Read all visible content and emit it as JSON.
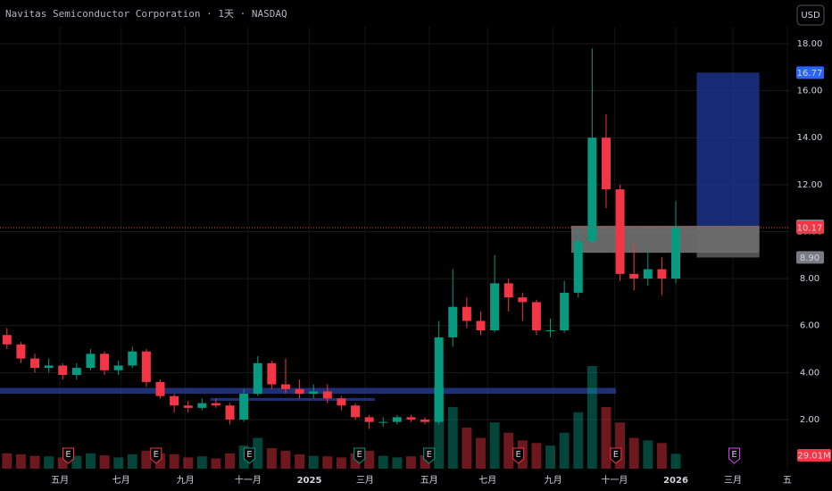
{
  "chart_data": {
    "type": "candlestick",
    "title": "Navitas Semiconductor Corporation · 1天 · NASDAQ",
    "currency_button": "USD",
    "xlim": [
      -0.5,
      56.2
    ],
    "xticks": [
      {
        "value": 3.8,
        "label": "五月"
      },
      {
        "value": 8.2,
        "label": "七月"
      },
      {
        "value": 12.8,
        "label": "九月"
      },
      {
        "value": 17.3,
        "label": "十一月"
      },
      {
        "value": 21.7,
        "label": "2025"
      },
      {
        "value": 25.7,
        "label": "三月"
      },
      {
        "value": 30.3,
        "label": "五月"
      },
      {
        "value": 34.5,
        "label": "七月"
      },
      {
        "value": 39.2,
        "label": "九月"
      },
      {
        "value": 43.6,
        "label": "十一月"
      },
      {
        "value": 48.0,
        "label": "2026"
      },
      {
        "value": 52.1,
        "label": "三月"
      },
      {
        "value": 56.0,
        "label": "五"
      }
    ],
    "ylim": [
      -0.09,
      18.72
    ],
    "yticks": [
      {
        "value": 2,
        "label": "2.00"
      },
      {
        "value": 4,
        "label": "4.00"
      },
      {
        "value": 6,
        "label": "6.00"
      },
      {
        "value": 8,
        "label": "8.00"
      },
      {
        "value": 10,
        "label": "10.00"
      },
      {
        "value": 12,
        "label": "12.00"
      },
      {
        "value": 14,
        "label": "14.00"
      },
      {
        "value": 16,
        "label": "16.00"
      },
      {
        "value": 18,
        "label": "18.00"
      }
    ],
    "grid": true,
    "up_color": "#089981",
    "down_color": "#f23645",
    "open": [
      5.6,
      5.2,
      4.6,
      4.2,
      4.3,
      3.9,
      4.2,
      4.8,
      4.1,
      4.3,
      4.9,
      3.6,
      3.0,
      2.6,
      2.5,
      2.7,
      2.6,
      2.0,
      3.1,
      4.4,
      3.5,
      3.3,
      3.1,
      3.2,
      2.9,
      2.6,
      2.1,
      1.9,
      1.9,
      2.1,
      2.0,
      1.9,
      5.5,
      6.8,
      6.2,
      5.8,
      7.8,
      7.2,
      7.0,
      5.8,
      5.8,
      7.4,
      9.6,
      14.0,
      11.8,
      8.2,
      8.0,
      8.4,
      8.0
    ],
    "high": [
      5.9,
      5.3,
      4.8,
      4.6,
      4.4,
      4.4,
      5.0,
      4.9,
      4.5,
      5.1,
      5.0,
      3.7,
      3.1,
      2.8,
      2.9,
      2.9,
      2.7,
      3.3,
      4.7,
      4.5,
      4.6,
      3.7,
      3.5,
      3.5,
      3.0,
      2.7,
      2.2,
      2.1,
      2.2,
      2.2,
      2.1,
      6.2,
      8.4,
      7.2,
      6.6,
      9.0,
      8.0,
      7.4,
      7.1,
      6.3,
      7.9,
      10.1,
      17.8,
      15.0,
      12.0,
      9.5,
      9.2,
      8.9,
      11.3
    ],
    "low": [
      5.0,
      4.4,
      4.0,
      4.0,
      3.7,
      3.7,
      4.1,
      3.9,
      3.9,
      4.2,
      3.4,
      2.9,
      2.3,
      2.3,
      2.4,
      2.5,
      1.8,
      1.9,
      3.0,
      3.3,
      3.1,
      2.9,
      2.9,
      2.7,
      2.4,
      2.0,
      1.6,
      1.7,
      1.8,
      1.9,
      1.8,
      1.8,
      5.1,
      5.9,
      5.6,
      5.7,
      6.6,
      6.2,
      5.6,
      5.5,
      5.7,
      7.2,
      9.5,
      11.0,
      7.9,
      7.5,
      7.7,
      7.3,
      7.8
    ],
    "close": [
      5.2,
      4.6,
      4.2,
      4.3,
      3.9,
      4.2,
      4.8,
      4.1,
      4.3,
      4.9,
      3.6,
      3.0,
      2.6,
      2.5,
      2.7,
      2.6,
      2.0,
      3.1,
      4.4,
      3.5,
      3.3,
      3.1,
      3.2,
      2.9,
      2.6,
      2.1,
      1.9,
      1.9,
      2.1,
      2.0,
      1.9,
      5.5,
      6.8,
      6.2,
      5.8,
      7.8,
      7.2,
      7.0,
      5.8,
      5.8,
      7.4,
      9.6,
      14.0,
      11.8,
      8.2,
      8.0,
      8.4,
      8.0,
      10.17
    ],
    "volume": {
      "ylim": [
        0,
        400
      ],
      "last_value_label": "29.01M",
      "values": [
        30,
        28,
        25,
        24,
        22,
        25,
        30,
        26,
        22,
        28,
        35,
        30,
        28,
        22,
        24,
        20,
        30,
        45,
        60,
        40,
        35,
        28,
        25,
        24,
        22,
        30,
        35,
        25,
        22,
        24,
        26,
        160,
        120,
        80,
        60,
        90,
        70,
        55,
        50,
        45,
        70,
        110,
        200,
        120,
        90,
        60,
        55,
        50,
        29.01
      ]
    },
    "zones": [
      {
        "x": [
          -0.5,
          43.7
        ],
        "y": [
          3.1,
          3.35
        ],
        "color": "#2a3f9a"
      },
      {
        "x": [
          14.6,
          26.4
        ],
        "y": [
          2.8,
          2.92
        ],
        "color": "#2a3f9a"
      },
      {
        "x": [
          40.5,
          54.0
        ],
        "y": [
          9.1,
          10.25
        ],
        "color": "#8a8a8a"
      },
      {
        "x": [
          49.5,
          54.0
        ],
        "y": [
          10.25,
          16.77
        ],
        "color": "#1e3a9a"
      },
      {
        "x": [
          49.5,
          54.0
        ],
        "y": [
          8.9,
          10.25
        ],
        "color": "#6b6b6b"
      }
    ],
    "price_line": {
      "value": 10.17,
      "color": "#f23645"
    },
    "price_labels": [
      {
        "value": 16.77,
        "color": "#2962ff"
      },
      {
        "value": 10.25,
        "color": "#787b86"
      },
      {
        "value": 10.17,
        "color": "#f23645"
      },
      {
        "value": {
          "value": 8.9,
          "label": "8.90"
        },
        "color": "#787b86"
      }
    ],
    "earnings": {
      "label": "E",
      "x": [
        4.4,
        10.7,
        17.4,
        25.3,
        30.3,
        36.7,
        43.7,
        52.2
      ],
      "colors": [
        "#f23645",
        "#f23645",
        "#089981",
        "#089981",
        "#089981",
        "#f23645",
        "#f23645",
        "#e040fb"
      ]
    }
  }
}
